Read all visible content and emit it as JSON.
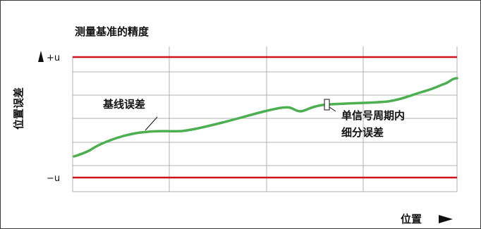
{
  "title": "测量基准的精度",
  "y_axis_label": "位置误差",
  "x_axis_label": "位置",
  "upper_limit_label": "+u",
  "lower_limit_label": "−u",
  "annotation_baseline": "基线误差",
  "annotation_subdivision_line1": "单信号周期内",
  "annotation_subdivision_line2": "细分误差",
  "colors": {
    "limit_line": "#d0121b",
    "curve": "#4caf50",
    "grid": "#b0b0b0",
    "text": "#111111"
  }
}
